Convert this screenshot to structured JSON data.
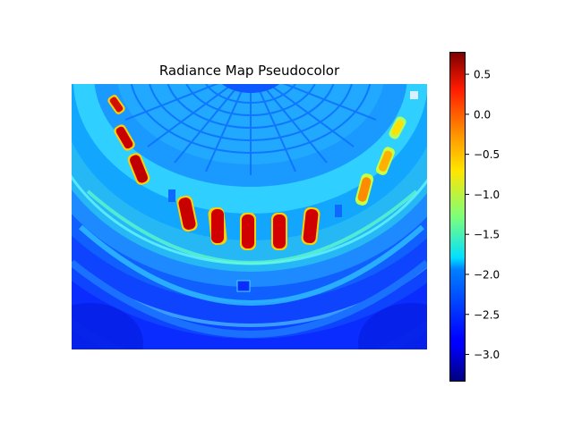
{
  "chart_data": {
    "type": "heatmap",
    "title": "Radiance Map Pseudocolor",
    "colormap": "jet",
    "colorbar": {
      "vmin": -3.34,
      "vmax": 0.78,
      "ticks": [
        0.5,
        0.0,
        -0.5,
        -1.0,
        -1.5,
        -2.0,
        -2.5,
        -3.0
      ],
      "tick_labels": [
        "0.5",
        "0.0",
        "−0.5",
        "−1.0",
        "−1.5",
        "−2.0",
        "−2.5",
        "−3.0"
      ]
    },
    "image_description": "pseudocolor log-radiance map of a domed rotunda interior; bright arched windows appear red, dome coffers cyan, outer walls deep blue"
  }
}
